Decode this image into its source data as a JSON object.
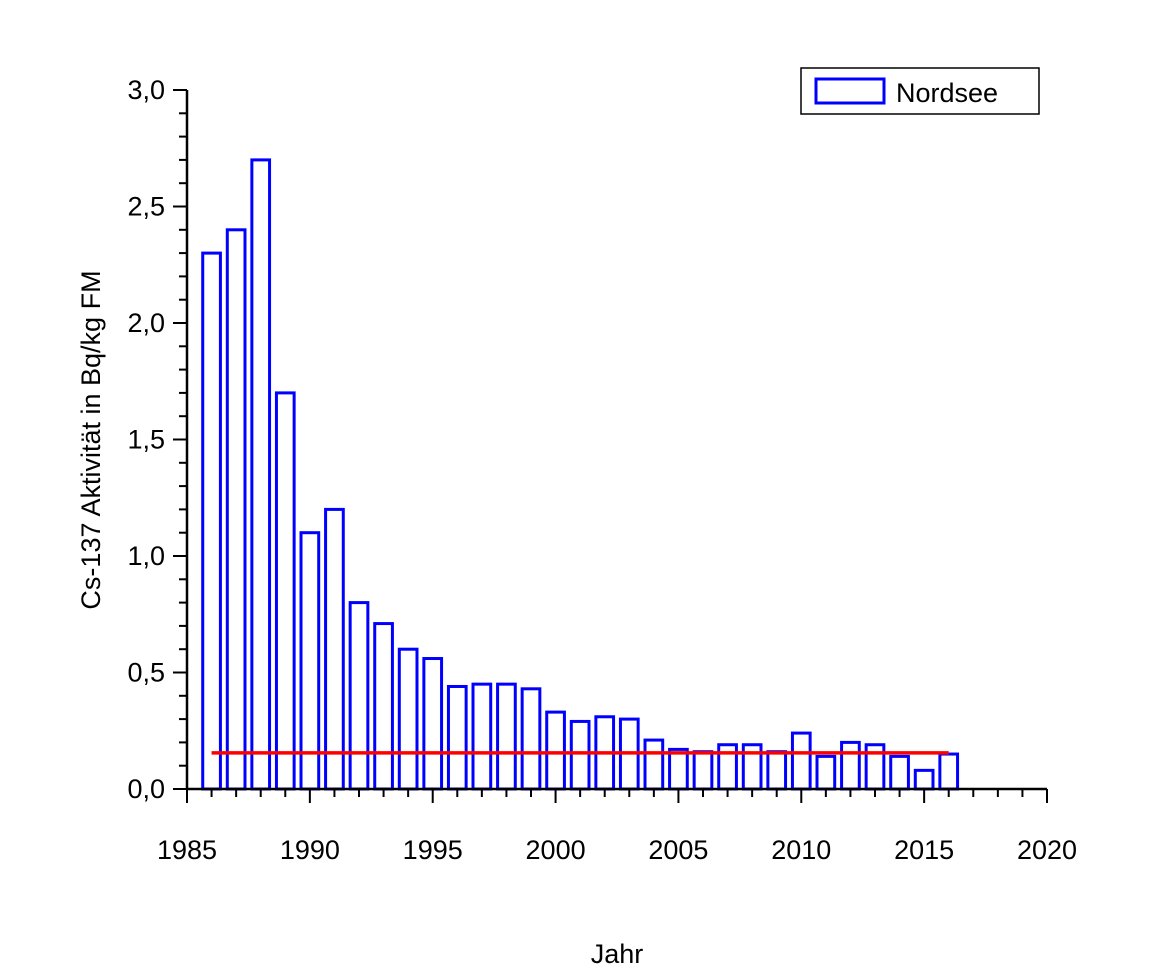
{
  "chart_data": {
    "type": "bar",
    "title": "",
    "xlabel": "Jahr",
    "ylabel": "Cs-137 Aktivität in Bq/kg FM",
    "xlim": [
      1985,
      2020
    ],
    "ylim": [
      0,
      3.0
    ],
    "grid": false,
    "legend": {
      "placement": "top-right",
      "entries": [
        "Nordsee"
      ]
    },
    "x_ticks": [
      "1985",
      "1990",
      "1995",
      "2000",
      "2005",
      "2010",
      "2015",
      "2020"
    ],
    "y_ticks": [
      "0,0",
      "0,5",
      "1,0",
      "1,5",
      "2,0",
      "2,5",
      "3,0"
    ],
    "series": [
      {
        "name": "Nordsee",
        "color": "#0000ff",
        "x": [
          1986,
          1987,
          1988,
          1989,
          1990,
          1991,
          1992,
          1993,
          1994,
          1995,
          1996,
          1997,
          1998,
          1999,
          2000,
          2001,
          2002,
          2003,
          2004,
          2005,
          2006,
          2007,
          2008,
          2009,
          2010,
          2011,
          2012,
          2013,
          2014,
          2015,
          2016
        ],
        "values": [
          2.3,
          2.4,
          2.7,
          1.7,
          1.1,
          1.2,
          0.8,
          0.71,
          0.6,
          0.56,
          0.44,
          0.45,
          0.45,
          0.43,
          0.33,
          0.29,
          0.31,
          0.3,
          0.21,
          0.17,
          0.16,
          0.19,
          0.19,
          0.16,
          0.24,
          0.14,
          0.2,
          0.19,
          0.14,
          0.08,
          0.15
        ]
      }
    ],
    "reference_line": {
      "value": 0.155,
      "x_range": [
        1986,
        2016
      ],
      "color": "#ff0000"
    }
  }
}
